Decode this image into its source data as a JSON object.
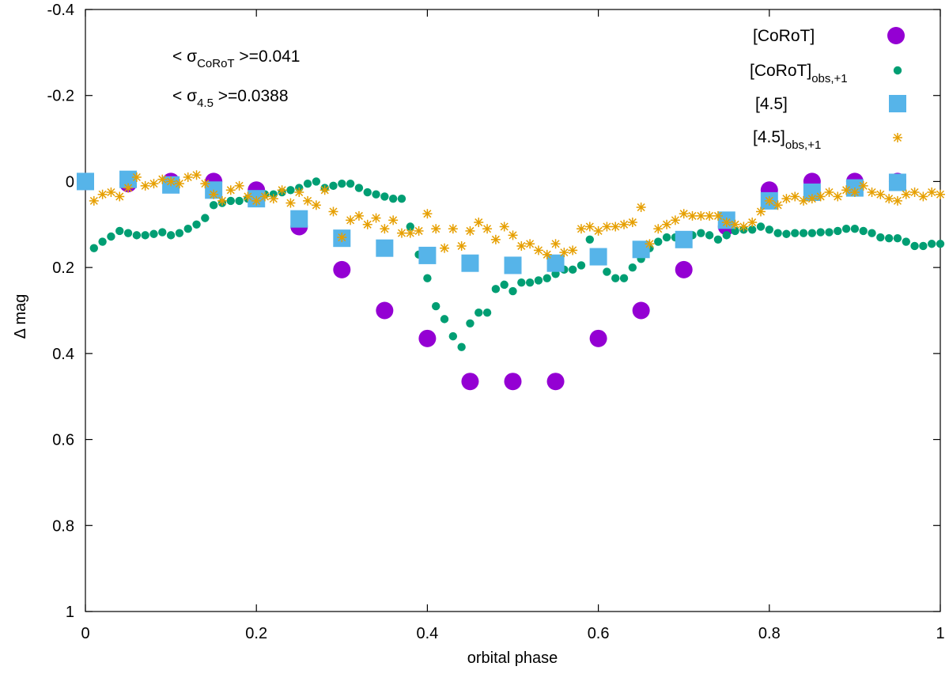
{
  "chart_data": {
    "type": "scatter",
    "title": "",
    "xlabel": "orbital phase",
    "ylabel": "Δ mag",
    "xlim": [
      0,
      1
    ],
    "ylim": [
      -0.4,
      1
    ],
    "y_inverted": true,
    "grid": false,
    "legend_position": "top-right",
    "x_ticks": [
      "0",
      "0.2",
      "0.4",
      "0.6",
      "0.8",
      "1"
    ],
    "y_ticks": [
      "-0.4",
      "-0.2",
      "0",
      "0.2",
      "0.4",
      "0.6",
      "0.8",
      "1"
    ],
    "annotations": [
      {
        "pre": "< σ",
        "sub": "CoRoT",
        "post": " >=0.041"
      },
      {
        "pre": "< σ",
        "sub": "4.5",
        "post": " >=0.0388"
      }
    ],
    "series": [
      {
        "name": "[CoRoT]",
        "legend_main": "[CoRoT]",
        "legend_sub": "",
        "marker": "circle-large",
        "color": "#9400d3",
        "x": [
          0,
          0.05,
          0.1,
          0.15,
          0.2,
          0.25,
          0.3,
          0.35,
          0.4,
          0.45,
          0.5,
          0.55,
          0.6,
          0.65,
          0.7,
          0.75,
          0.8,
          0.85,
          0.9,
          0.95
        ],
        "y": [
          0,
          0.005,
          0,
          0,
          0.02,
          0.105,
          0.205,
          0.3,
          0.365,
          0.465,
          0.465,
          0.465,
          0.365,
          0.3,
          0.205,
          0.105,
          0.02,
          0,
          0,
          0
        ]
      },
      {
        "name": "[CoRoT]obs,+1",
        "legend_main": "[CoRoT]",
        "legend_sub": "obs,+1",
        "marker": "circle-small",
        "color": "#009e73",
        "x": [
          0.01,
          0.02,
          0.03,
          0.04,
          0.05,
          0.06,
          0.07,
          0.08,
          0.09,
          0.1,
          0.11,
          0.12,
          0.13,
          0.14,
          0.15,
          0.16,
          0.17,
          0.18,
          0.19,
          0.2,
          0.21,
          0.22,
          0.23,
          0.24,
          0.25,
          0.26,
          0.27,
          0.28,
          0.29,
          0.3,
          0.31,
          0.32,
          0.33,
          0.34,
          0.35,
          0.36,
          0.37,
          0.38,
          0.39,
          0.4,
          0.41,
          0.42,
          0.43,
          0.44,
          0.45,
          0.46,
          0.47,
          0.48,
          0.49,
          0.5,
          0.51,
          0.52,
          0.53,
          0.54,
          0.55,
          0.56,
          0.57,
          0.58,
          0.59,
          0.6,
          0.61,
          0.62,
          0.63,
          0.64,
          0.65,
          0.66,
          0.67,
          0.68,
          0.69,
          0.7,
          0.71,
          0.72,
          0.73,
          0.74,
          0.75,
          0.76,
          0.77,
          0.78,
          0.79,
          0.8,
          0.81,
          0.82,
          0.83,
          0.84,
          0.85,
          0.86,
          0.87,
          0.88,
          0.89,
          0.9,
          0.91,
          0.92,
          0.93,
          0.94,
          0.95,
          0.96,
          0.97,
          0.98,
          0.99,
          1.0
        ],
        "y": [
          0.155,
          0.14,
          0.128,
          0.115,
          0.12,
          0.125,
          0.125,
          0.122,
          0.118,
          0.125,
          0.12,
          0.11,
          0.1,
          0.085,
          0.055,
          0.05,
          0.045,
          0.045,
          0.04,
          0.035,
          0.03,
          0.03,
          0.025,
          0.02,
          0.015,
          0.005,
          0.0,
          0.015,
          0.01,
          0.005,
          0.005,
          0.015,
          0.025,
          0.03,
          0.035,
          0.04,
          0.04,
          0.105,
          0.17,
          0.225,
          0.29,
          0.32,
          0.36,
          0.385,
          0.33,
          0.305,
          0.305,
          0.25,
          0.24,
          0.255,
          0.235,
          0.235,
          0.23,
          0.225,
          0.215,
          0.205,
          0.205,
          0.195,
          0.135,
          0.185,
          0.21,
          0.225,
          0.225,
          0.2,
          0.18,
          0.155,
          0.14,
          0.13,
          0.13,
          0.125,
          0.125,
          0.12,
          0.125,
          0.135,
          0.125,
          0.115,
          0.112,
          0.112,
          0.105,
          0.112,
          0.12,
          0.122,
          0.12,
          0.12,
          0.12,
          0.118,
          0.118,
          0.115,
          0.11,
          0.11,
          0.115,
          0.12,
          0.13,
          0.132,
          0.132,
          0.14,
          0.15,
          0.15,
          0.145,
          0.145
        ]
      },
      {
        "name": "[4.5]",
        "legend_main": "[4.5]",
        "legend_sub": "",
        "marker": "square",
        "color": "#56b4e9",
        "x": [
          0,
          0.05,
          0.1,
          0.15,
          0.2,
          0.25,
          0.3,
          0.35,
          0.4,
          0.45,
          0.5,
          0.55,
          0.6,
          0.65,
          0.7,
          0.75,
          0.8,
          0.85,
          0.9,
          0.95
        ],
        "y": [
          0,
          -0.005,
          0.008,
          0.02,
          0.04,
          0.087,
          0.132,
          0.155,
          0.172,
          0.19,
          0.195,
          0.19,
          0.175,
          0.158,
          0.135,
          0.09,
          0.045,
          0.025,
          0.015,
          0.002
        ]
      },
      {
        "name": "[4.5]obs,+1",
        "legend_main": "[4.5]",
        "legend_sub": "obs,+1",
        "marker": "asterisk",
        "color": "#e69f00",
        "x": [
          0.01,
          0.02,
          0.03,
          0.04,
          0.05,
          0.06,
          0.07,
          0.08,
          0.09,
          0.1,
          0.11,
          0.12,
          0.13,
          0.14,
          0.15,
          0.16,
          0.17,
          0.18,
          0.19,
          0.2,
          0.21,
          0.22,
          0.23,
          0.24,
          0.25,
          0.26,
          0.27,
          0.28,
          0.29,
          0.3,
          0.31,
          0.32,
          0.33,
          0.34,
          0.35,
          0.36,
          0.37,
          0.38,
          0.39,
          0.4,
          0.41,
          0.42,
          0.43,
          0.44,
          0.45,
          0.46,
          0.47,
          0.48,
          0.49,
          0.5,
          0.51,
          0.52,
          0.53,
          0.54,
          0.55,
          0.56,
          0.57,
          0.58,
          0.59,
          0.6,
          0.61,
          0.62,
          0.63,
          0.64,
          0.65,
          0.66,
          0.67,
          0.68,
          0.69,
          0.7,
          0.71,
          0.72,
          0.73,
          0.74,
          0.75,
          0.76,
          0.77,
          0.78,
          0.79,
          0.8,
          0.81,
          0.82,
          0.83,
          0.84,
          0.85,
          0.86,
          0.87,
          0.88,
          0.89,
          0.9,
          0.91,
          0.92,
          0.93,
          0.94,
          0.95,
          0.96,
          0.97,
          0.98,
          0.99,
          1.0
        ],
        "y": [
          0.045,
          0.03,
          0.025,
          0.035,
          0.015,
          -0.01,
          0.01,
          0.005,
          -0.005,
          0.0,
          0.005,
          -0.01,
          -0.015,
          0.005,
          0.03,
          0.045,
          0.02,
          0.01,
          0.035,
          0.045,
          0.035,
          0.04,
          0.02,
          0.05,
          0.025,
          0.045,
          0.055,
          0.02,
          0.07,
          0.13,
          0.09,
          0.08,
          0.1,
          0.085,
          0.11,
          0.09,
          0.12,
          0.12,
          0.115,
          0.075,
          0.11,
          0.155,
          0.11,
          0.15,
          0.115,
          0.095,
          0.11,
          0.135,
          0.105,
          0.125,
          0.15,
          0.145,
          0.16,
          0.17,
          0.145,
          0.165,
          0.16,
          0.11,
          0.105,
          0.115,
          0.105,
          0.105,
          0.1,
          0.095,
          0.06,
          0.145,
          0.11,
          0.1,
          0.09,
          0.075,
          0.08,
          0.08,
          0.08,
          0.08,
          0.095,
          0.1,
          0.105,
          0.095,
          0.07,
          0.045,
          0.055,
          0.04,
          0.035,
          0.045,
          0.04,
          0.035,
          0.025,
          0.035,
          0.02,
          0.025,
          0.01,
          0.025,
          0.03,
          0.04,
          0.045,
          0.03,
          0.025,
          0.035,
          0.025,
          0.03
        ]
      }
    ]
  }
}
